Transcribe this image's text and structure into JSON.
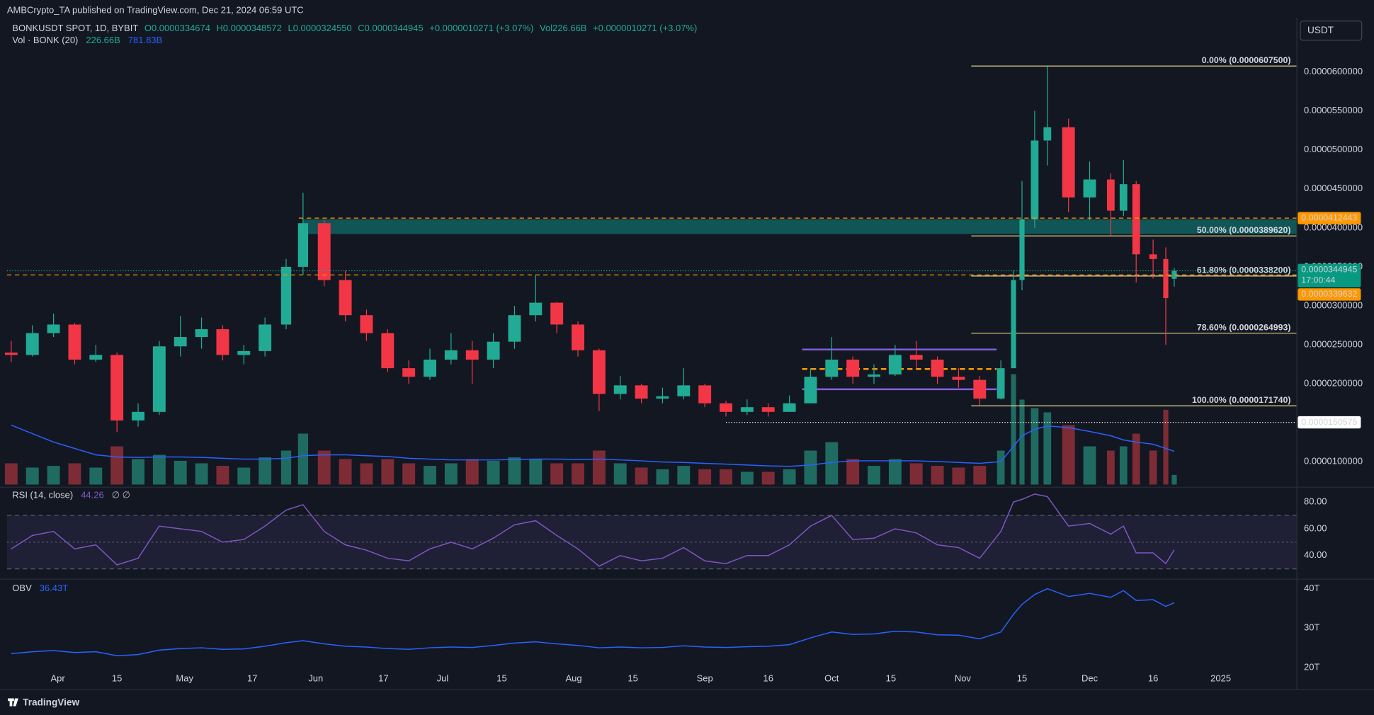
{
  "header": {
    "publisher": "AMBCrypto_TA published on TradingView.com, Dec 21, 2024 06:59 UTC"
  },
  "chart_data": {
    "type": "candlestick",
    "symbol": "BONKUSDT SPOT, 1D, BYBIT",
    "legend": [
      "O0.0000334674",
      "H0.0000348572",
      "L0.0000324550",
      "C0.0000344945",
      "+0.0000010271 (+3.07%)",
      "Vol226.66B",
      "+0.0000010271 (+3.07%)"
    ],
    "currency": "USDT",
    "x": [
      "2024-03-21",
      "2024-03-26",
      "2024-03-31",
      "2024-04-05",
      "2024-04-10",
      "2024-04-15",
      "2024-04-20",
      "2024-04-25",
      "2024-04-30",
      "2024-05-05",
      "2024-05-10",
      "2024-05-15",
      "2024-05-20",
      "2024-05-25",
      "2024-05-29",
      "2024-06-03",
      "2024-06-08",
      "2024-06-13",
      "2024-06-18",
      "2024-06-23",
      "2024-06-28",
      "2024-07-03",
      "2024-07-08",
      "2024-07-13",
      "2024-07-18",
      "2024-07-23",
      "2024-07-28",
      "2024-08-02",
      "2024-08-07",
      "2024-08-12",
      "2024-08-17",
      "2024-08-22",
      "2024-08-27",
      "2024-09-01",
      "2024-09-06",
      "2024-09-11",
      "2024-09-16",
      "2024-09-21",
      "2024-09-26",
      "2024-10-01",
      "2024-10-06",
      "2024-10-11",
      "2024-10-16",
      "2024-10-21",
      "2024-10-26",
      "2024-10-31",
      "2024-11-05",
      "2024-11-10",
      "2024-11-13",
      "2024-11-15",
      "2024-11-18",
      "2024-11-21",
      "2024-11-26",
      "2024-12-01",
      "2024-12-06",
      "2024-12-09",
      "2024-12-12",
      "2024-12-16",
      "2024-12-19",
      "2024-12-21"
    ],
    "opens": [
      2.4e-05,
      2.37e-05,
      2.65e-05,
      2.76e-05,
      2.31e-05,
      2.37e-05,
      1.53e-05,
      1.64e-05,
      2.48e-05,
      2.6e-05,
      2.7e-05,
      2.37e-05,
      2.42e-05,
      2.76e-05,
      3.5e-05,
      4.06e-05,
      3.33e-05,
      2.88e-05,
      2.65e-05,
      2.2e-05,
      2.09e-05,
      2.31e-05,
      2.43e-05,
      2.31e-05,
      2.54e-05,
      2.88e-05,
      3.04e-05,
      2.76e-05,
      2.43e-05,
      1.87e-05,
      1.98e-05,
      1.81e-05,
      1.84e-05,
      1.98e-05,
      1.75e-05,
      1.64e-05,
      1.7e-05,
      1.64e-05,
      1.75e-05,
      2.09e-05,
      2.31e-05,
      2.09e-05,
      2.12e-05,
      2.37e-05,
      2.31e-05,
      2.09e-05,
      2.05e-05,
      1.81e-05,
      2.2e-05,
      3.33e-05,
      4.11e-05,
      5.12e-05,
      5.29e-05,
      4.39e-05,
      4.62e-05,
      4.22e-05,
      4.56e-05,
      3.66e-05,
      3.6e-05,
      3.34674e-05
    ],
    "highs": [
      2.55e-05,
      2.75e-05,
      2.9e-05,
      2.78e-05,
      2.5e-05,
      2.4e-05,
      1.75e-05,
      2.55e-05,
      2.87e-05,
      2.85e-05,
      2.75e-05,
      2.5e-05,
      2.85e-05,
      3.6e-05,
      4.45e-05,
      4.1e-05,
      3.45e-05,
      2.95e-05,
      2.7e-05,
      2.3e-05,
      2.45e-05,
      2.65e-05,
      2.55e-05,
      2.65e-05,
      3e-05,
      3.4e-05,
      3.05e-05,
      2.8e-05,
      2.45e-05,
      2.1e-05,
      2e-05,
      1.95e-05,
      2.2e-05,
      2e-05,
      1.78e-05,
      1.8e-05,
      1.75e-05,
      1.85e-05,
      2.2e-05,
      2.6e-05,
      2.35e-05,
      2.25e-05,
      2.5e-05,
      2.55e-05,
      2.35e-05,
      2.2e-05,
      2.1e-05,
      2.3e-05,
      3.45e-05,
      4.6e-05,
      5.5e-05,
      6.075e-05,
      5.4e-05,
      4.85e-05,
      4.7e-05,
      4.87e-05,
      4.6e-05,
      3.85e-05,
      3.75e-05,
      3.48572e-05
    ],
    "lows": [
      2.28e-05,
      2.35e-05,
      2.6e-05,
      2.25e-05,
      2.28e-05,
      1.38e-05,
      1.45e-05,
      1.6e-05,
      2.35e-05,
      2.45e-05,
      2.3e-05,
      2.25e-05,
      2.35e-05,
      2.7e-05,
      3.4e-05,
      3.25e-05,
      2.8e-05,
      2.55e-05,
      2.15e-05,
      2e-05,
      2.05e-05,
      2.25e-05,
      2e-05,
      2.2e-05,
      2.45e-05,
      2.8e-05,
      2.65e-05,
      2.35e-05,
      1.65e-05,
      1.8e-05,
      1.75e-05,
      1.75e-05,
      1.8e-05,
      1.7e-05,
      1.58e-05,
      1.6e-05,
      1.58e-05,
      1.65e-05,
      1.75e-05,
      2.05e-05,
      2e-05,
      2e-05,
      2.1e-05,
      2.2e-05,
      2e-05,
      1.95e-05,
      1.72e-05,
      1.8e-05,
      2.2e-05,
      3.2e-05,
      4e-05,
      4.8e-05,
      4.2e-05,
      4.1e-05,
      3.9e-05,
      4.15e-05,
      3.3e-05,
      3.35e-05,
      2.5e-05,
      3.2455e-05
    ],
    "closes": [
      2.37e-05,
      2.65e-05,
      2.76e-05,
      2.31e-05,
      2.37e-05,
      1.53e-05,
      1.64e-05,
      2.48e-05,
      2.6e-05,
      2.7e-05,
      2.37e-05,
      2.42e-05,
      2.76e-05,
      3.5e-05,
      4.06e-05,
      3.33e-05,
      2.88e-05,
      2.65e-05,
      2.2e-05,
      2.09e-05,
      2.31e-05,
      2.43e-05,
      2.31e-05,
      2.54e-05,
      2.88e-05,
      3.04e-05,
      2.76e-05,
      2.43e-05,
      1.87e-05,
      1.98e-05,
      1.81e-05,
      1.84e-05,
      1.98e-05,
      1.75e-05,
      1.64e-05,
      1.7e-05,
      1.64e-05,
      1.75e-05,
      2.09e-05,
      2.31e-05,
      2.09e-05,
      2.12e-05,
      2.37e-05,
      2.31e-05,
      2.09e-05,
      2.05e-05,
      1.81e-05,
      2.2e-05,
      3.33e-05,
      4.11e-05,
      5.12e-05,
      5.29e-05,
      4.39e-05,
      4.62e-05,
      4.22e-05,
      4.56e-05,
      3.66e-05,
      3.6e-05,
      3.1e-05,
      3.44945e-05
    ],
    "xlim": [
      "2024-03-20",
      "2025-01-19"
    ],
    "xticks": [
      {
        "value": "2024-04-01",
        "label": "Apr"
      },
      {
        "value": "2024-04-15",
        "label": "15"
      },
      {
        "value": "2024-05-01",
        "label": "May"
      },
      {
        "value": "2024-05-17",
        "label": "17"
      },
      {
        "value": "2024-06-01",
        "label": "Jun"
      },
      {
        "value": "2024-06-17",
        "label": "17"
      },
      {
        "value": "2024-07-01",
        "label": "Jul"
      },
      {
        "value": "2024-07-15",
        "label": "15"
      },
      {
        "value": "2024-08-01",
        "label": "Aug"
      },
      {
        "value": "2024-08-15",
        "label": "15"
      },
      {
        "value": "2024-09-01",
        "label": "Sep"
      },
      {
        "value": "2024-09-16",
        "label": "16"
      },
      {
        "value": "2024-10-01",
        "label": "Oct"
      },
      {
        "value": "2024-10-15",
        "label": "15"
      },
      {
        "value": "2024-11-01",
        "label": "Nov"
      },
      {
        "value": "2024-11-15",
        "label": "15"
      },
      {
        "value": "2024-12-01",
        "label": "Dec"
      },
      {
        "value": "2024-12-16",
        "label": "16"
      },
      {
        "value": "2025-01-01",
        "label": "2025"
      }
    ],
    "ylim": [
      7.08e-06,
      6.697e-05
    ],
    "yticks": [
      {
        "value": 6e-05,
        "label": "0.0000600000"
      },
      {
        "value": 5.5e-05,
        "label": "0.0000550000"
      },
      {
        "value": 5e-05,
        "label": "0.0000500000"
      },
      {
        "value": 4.5e-05,
        "label": "0.0000450000"
      },
      {
        "value": 4e-05,
        "label": "0.0000400000"
      },
      {
        "value": 3.5e-05,
        "label": "0.0000350000"
      },
      {
        "value": 3e-05,
        "label": "0.0000300000"
      },
      {
        "value": 2.5e-05,
        "label": "0.0000250000"
      },
      {
        "value": 2e-05,
        "label": "0.0000200000"
      },
      {
        "value": 1e-05,
        "label": "0.0000100000"
      }
    ],
    "grid": false,
    "colors": {
      "up": "#22ab94",
      "down": "#f23645",
      "up_volume": "#1f6b62",
      "down_volume": "#7d2c36",
      "volume_ma": "#2962ff",
      "rsi": "#7e57c2",
      "obv": "#2962ff",
      "fib": "#e8dc8c",
      "zone": "#12605f",
      "range": "#8561e0",
      "range_mid": "#ff9800"
    },
    "volume": {
      "title": "Vol · BONK (20)",
      "value_label": "226.66B",
      "ma_label": "781.83B",
      "ylim": [
        0,
        11000
      ],
      "values": [
        500,
        400,
        440,
        500,
        400,
        900,
        600,
        700,
        560,
        500,
        440,
        400,
        640,
        800,
        1200,
        800,
        600,
        500,
        600,
        500,
        440,
        500,
        600,
        560,
        640,
        600,
        500,
        500,
        800,
        500,
        400,
        360,
        440,
        360,
        360,
        300,
        300,
        360,
        800,
        1000,
        600,
        440,
        600,
        500,
        440,
        400,
        440,
        800,
        2600,
        2000,
        1800,
        1700,
        1400,
        900,
        800,
        900,
        1200,
        800,
        1760,
        226.66
      ],
      "ma": [
        1400,
        1200,
        1000,
        850,
        700,
        650,
        640,
        650,
        650,
        640,
        620,
        600,
        600,
        620,
        680,
        700,
        700,
        680,
        660,
        620,
        600,
        580,
        580,
        580,
        590,
        600,
        600,
        590,
        600,
        580,
        560,
        530,
        520,
        500,
        480,
        460,
        440,
        430,
        460,
        520,
        560,
        560,
        560,
        560,
        540,
        520,
        500,
        540,
        900,
        1150,
        1300,
        1380,
        1340,
        1250,
        1150,
        1050,
        1000,
        950,
        850,
        781.83
      ]
    },
    "fib_start": "2024-11-03",
    "fib": [
      {
        "value": 6.075e-05,
        "label": "0.00% (0.0000607500)"
      },
      {
        "value": 3.8962e-05,
        "label": "50.00% (0.0000389620)"
      },
      {
        "value": 3.382e-05,
        "label": "61.80% (0.0000338200)"
      },
      {
        "value": 2.64993e-05,
        "label": "78.60% (0.0000264993)"
      },
      {
        "value": 1.7174e-05,
        "label": "100.00% (0.0000171740)"
      }
    ],
    "levels": [
      {
        "value": 4.12443e-05,
        "label": "0.0000412443",
        "start": "2024-05-28",
        "color": "#ff9800",
        "style": "dashed"
      },
      {
        "value": 3.39632e-05,
        "label": "0.0000339632",
        "start": "2024-03-20",
        "color": "#ff9800",
        "style": "dashed"
      },
      {
        "value": 1.50575e-05,
        "label": "0.0000150575",
        "start": "2024-09-06",
        "color": "#ffffff",
        "style": "dotted"
      }
    ],
    "last_price": {
      "value": 3.44945e-05,
      "label": "0.0000344945",
      "countdown": "17:00:44"
    },
    "zone": {
      "low": 3.92e-05,
      "high": 4.11e-05,
      "start": "2024-05-29"
    },
    "range_box": {
      "high": 2.44e-05,
      "mid": 2.19e-05,
      "low": 1.93e-05,
      "start": "2024-09-24",
      "end": "2024-11-09"
    },
    "rsi": {
      "title": "RSI (14, close)",
      "value_label": "44.26",
      "extra": "∅ ∅",
      "ylim": [
        24.3,
        91.1
      ],
      "yticks": [
        {
          "value": 80,
          "label": "80.00"
        },
        {
          "value": 60,
          "label": "60.00"
        },
        {
          "value": 40,
          "label": "40.00"
        }
      ],
      "bands": [
        70,
        50,
        30
      ],
      "values": [
        45,
        55,
        58,
        45,
        48,
        33,
        38,
        62,
        60,
        58,
        50,
        52,
        62,
        74,
        78,
        58,
        48,
        44,
        38,
        36,
        45,
        50,
        45,
        53,
        63,
        66,
        55,
        45,
        32,
        40,
        36,
        38,
        46,
        36,
        34,
        40,
        40,
        48,
        62,
        70,
        52,
        53,
        60,
        57,
        48,
        46,
        38,
        58,
        80,
        82,
        86,
        84,
        62,
        64,
        56,
        62,
        42,
        42,
        34,
        44.26
      ]
    },
    "obv": {
      "title": "OBV",
      "value_label": "36.43T",
      "ylim": [
        14.4,
        42.4
      ],
      "yticks": [
        {
          "value": 40,
          "label": "40T"
        },
        {
          "value": 30,
          "label": "30T"
        },
        {
          "value": 20,
          "label": "20T"
        }
      ],
      "values": [
        23.5,
        24,
        24.3,
        23.8,
        24,
        23,
        23.3,
        24.4,
        24.8,
        25,
        24.6,
        24.7,
        25.4,
        26.3,
        26.8,
        26,
        25.4,
        25.2,
        24.8,
        24.6,
        25,
        25.2,
        25.1,
        25.6,
        26.2,
        26.5,
        26,
        25.6,
        25,
        25.2,
        25,
        25.1,
        25.5,
        25.2,
        25.1,
        25.3,
        25.4,
        25.8,
        27.5,
        29,
        28.4,
        28.5,
        29.2,
        29,
        28.3,
        28.2,
        27.3,
        29,
        33.5,
        36,
        38.5,
        40,
        38,
        38.8,
        37.8,
        39.5,
        37,
        37.2,
        35.5,
        36.43
      ]
    }
  },
  "footer": {
    "brand": "TradingView"
  }
}
